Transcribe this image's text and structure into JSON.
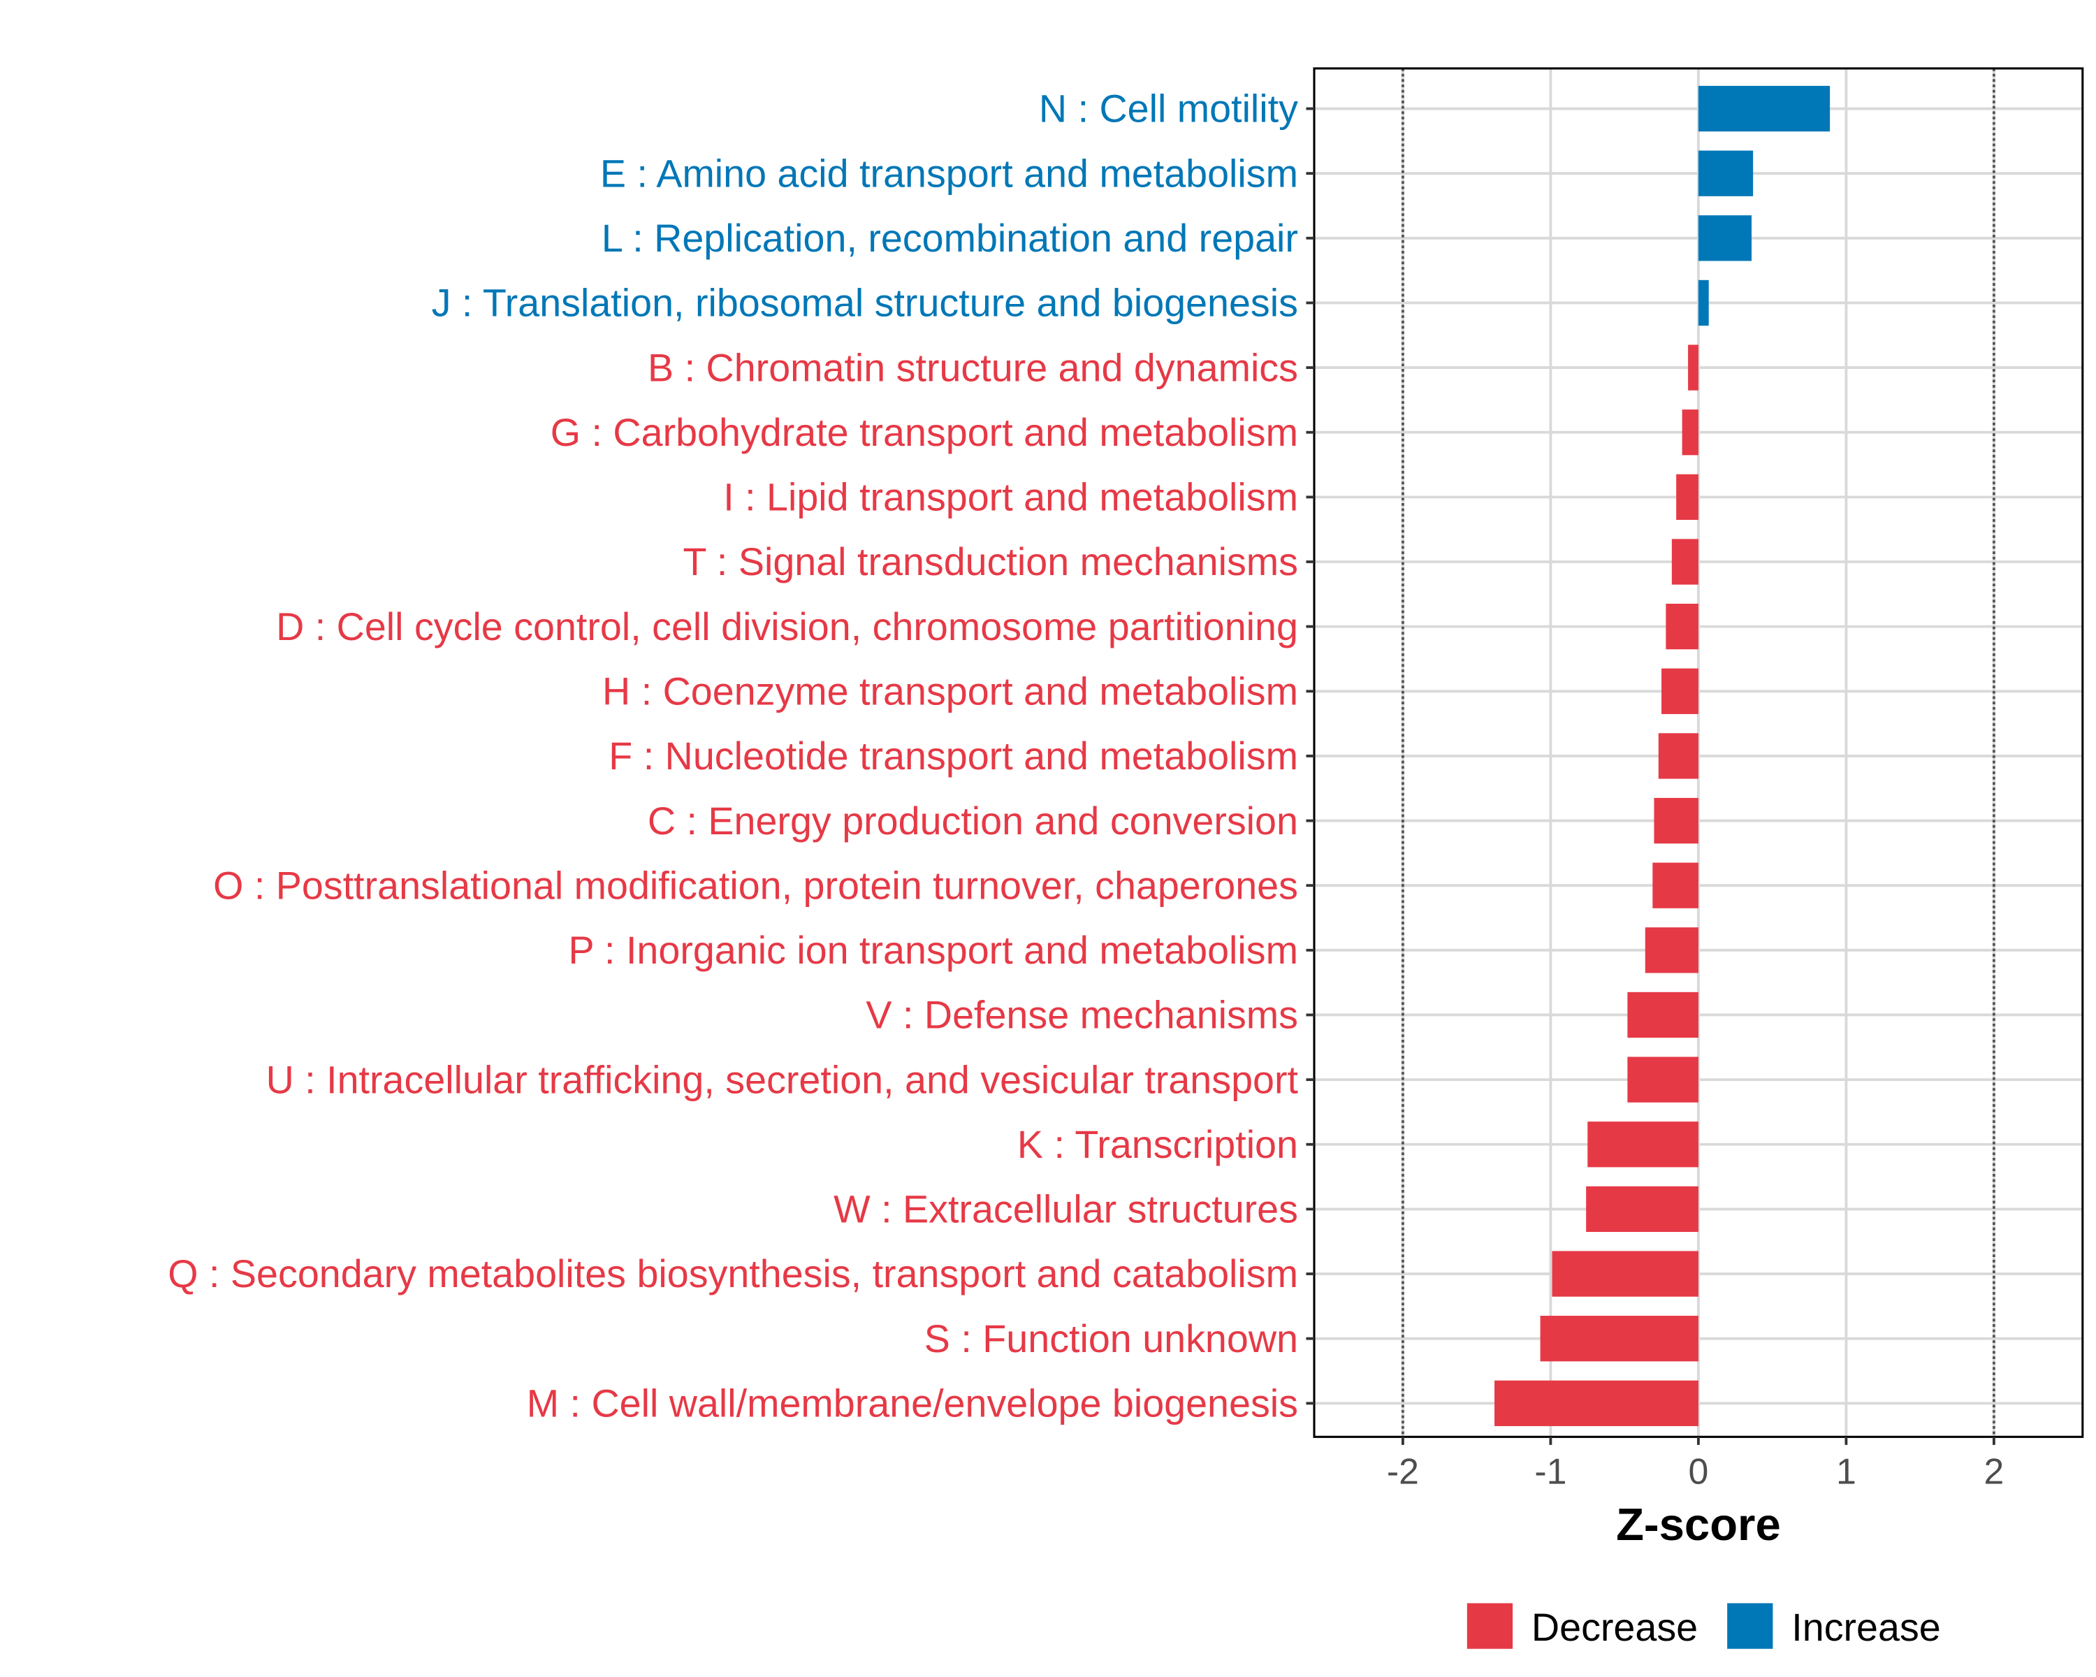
{
  "chart_data": {
    "type": "bar",
    "orientation": "horizontal",
    "title": "",
    "xlabel": "Z-score",
    "ylabel": "",
    "xlim": [
      -2.6,
      2.6
    ],
    "x_ticks": [
      -2,
      -1,
      0,
      1,
      2
    ],
    "x_tick_labels": [
      "-2",
      "-1",
      "0",
      "1",
      "2"
    ],
    "reference_lines": [
      -2,
      2
    ],
    "grid": true,
    "legend_position": "bottom",
    "legend": [
      {
        "label": "Decrease",
        "color": "#E63946"
      },
      {
        "label": "Increase",
        "color": "#0077B6"
      }
    ],
    "categories": [
      "N : Cell motility",
      "E : Amino acid transport and metabolism",
      "L : Replication, recombination and repair",
      "J : Translation, ribosomal structure and biogenesis",
      "B : Chromatin structure and dynamics",
      "G : Carbohydrate transport and metabolism",
      "I : Lipid transport and metabolism",
      "T : Signal transduction mechanisms",
      "D : Cell cycle control, cell division, chromosome partitioning",
      "H : Coenzyme transport and metabolism",
      "F : Nucleotide transport and metabolism",
      "C : Energy production and conversion",
      "O : Posttranslational modification, protein turnover, chaperones",
      "P : Inorganic ion transport and metabolism",
      "V : Defense mechanisms",
      "U : Intracellular trafficking, secretion, and vesicular transport",
      "K : Transcription",
      "W : Extracellular structures",
      "Q : Secondary metabolites biosynthesis, transport and catabolism",
      "S : Function unknown",
      "M : Cell wall/membrane/envelope biogenesis"
    ],
    "values": [
      0.89,
      0.37,
      0.36,
      0.07,
      -0.07,
      -0.11,
      -0.15,
      -0.18,
      -0.22,
      -0.25,
      -0.27,
      -0.3,
      -0.31,
      -0.36,
      -0.48,
      -0.48,
      -0.75,
      -0.76,
      -0.99,
      -1.07,
      -1.38
    ],
    "groups": [
      "Increase",
      "Increase",
      "Increase",
      "Increase",
      "Decrease",
      "Decrease",
      "Decrease",
      "Decrease",
      "Decrease",
      "Decrease",
      "Decrease",
      "Decrease",
      "Decrease",
      "Decrease",
      "Decrease",
      "Decrease",
      "Decrease",
      "Decrease",
      "Decrease",
      "Decrease",
      "Decrease"
    ]
  }
}
